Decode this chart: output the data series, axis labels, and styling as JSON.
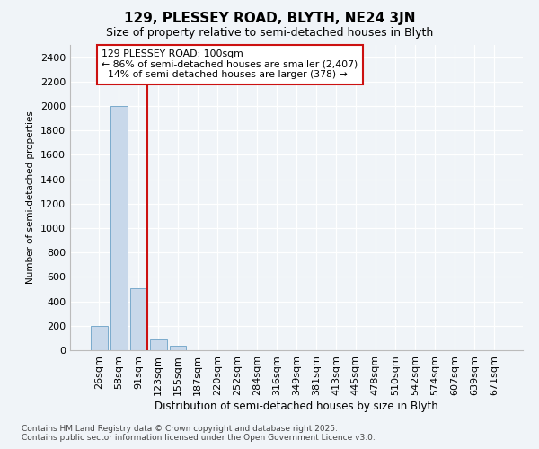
{
  "title": "129, PLESSEY ROAD, BLYTH, NE24 3JN",
  "subtitle": "Size of property relative to semi-detached houses in Blyth",
  "xlabel": "Distribution of semi-detached houses by size in Blyth",
  "ylabel": "Number of semi-detached properties",
  "bar_color": "#c8d8ea",
  "bar_edge_color": "#7aabcc",
  "background_color": "#f0f4f8",
  "plot_bg_color": "#f0f4f8",
  "grid_color": "#ffffff",
  "categories": [
    "26sqm",
    "58sqm",
    "91sqm",
    "123sqm",
    "155sqm",
    "187sqm",
    "220sqm",
    "252sqm",
    "284sqm",
    "316sqm",
    "349sqm",
    "381sqm",
    "413sqm",
    "445sqm",
    "478sqm",
    "510sqm",
    "542sqm",
    "574sqm",
    "607sqm",
    "639sqm",
    "671sqm"
  ],
  "values": [
    200,
    2000,
    510,
    85,
    35,
    0,
    0,
    0,
    0,
    0,
    0,
    0,
    0,
    0,
    0,
    0,
    0,
    0,
    0,
    0,
    0
  ],
  "ylim": [
    0,
    2500
  ],
  "yticks": [
    0,
    200,
    400,
    600,
    800,
    1000,
    1200,
    1400,
    1600,
    1800,
    2000,
    2200,
    2400
  ],
  "vline_color": "#cc1111",
  "annotation_box_color": "#cc1111",
  "property_label": "129 PLESSEY ROAD: 100sqm",
  "smaller_text": "← 86% of semi-detached houses are smaller (2,407)",
  "larger_text": "14% of semi-detached houses are larger (378) →",
  "footer_line1": "Contains HM Land Registry data © Crown copyright and database right 2025.",
  "footer_line2": "Contains public sector information licensed under the Open Government Licence v3.0."
}
